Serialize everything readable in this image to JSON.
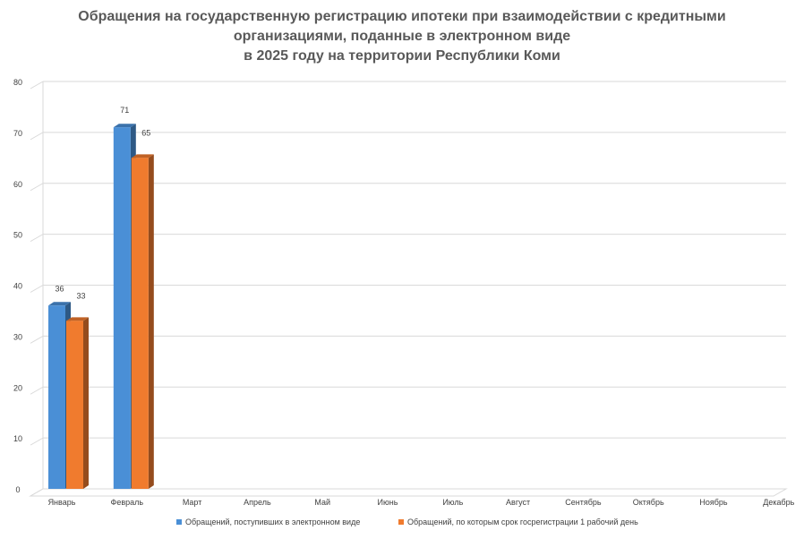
{
  "chart_data": {
    "type": "bar",
    "title_lines": [
      "Обращения на государственную регистрацию ипотеки при взаимодействии с кредитными",
      "организациями, поданные в электронном виде",
      "в 2025 году на территории Республики Коми"
    ],
    "categories": [
      "Январь",
      "Февраль",
      "Март",
      "Апрель",
      "Май",
      "Июнь",
      "Июль",
      "Август",
      "Сентябрь",
      "Октябрь",
      "Ноябрь",
      "Декабрь"
    ],
    "series": [
      {
        "name": "Обращений, поступивших в электронном виде",
        "values": [
          36,
          71,
          null,
          null,
          null,
          null,
          null,
          null,
          null,
          null,
          null,
          null
        ],
        "color": "#4a8fd6"
      },
      {
        "name": "Обращений, по которым срок госрегистрации 1 рабочий день",
        "values": [
          33,
          65,
          null,
          null,
          null,
          null,
          null,
          null,
          null,
          null,
          null,
          null
        ],
        "color": "#f07b2e"
      }
    ],
    "ylim": [
      0,
      80
    ],
    "yticks": [
      0,
      10,
      20,
      30,
      40,
      50,
      60,
      70,
      80
    ],
    "grid": true,
    "legend_position": "bottom",
    "style": "3d-column"
  }
}
